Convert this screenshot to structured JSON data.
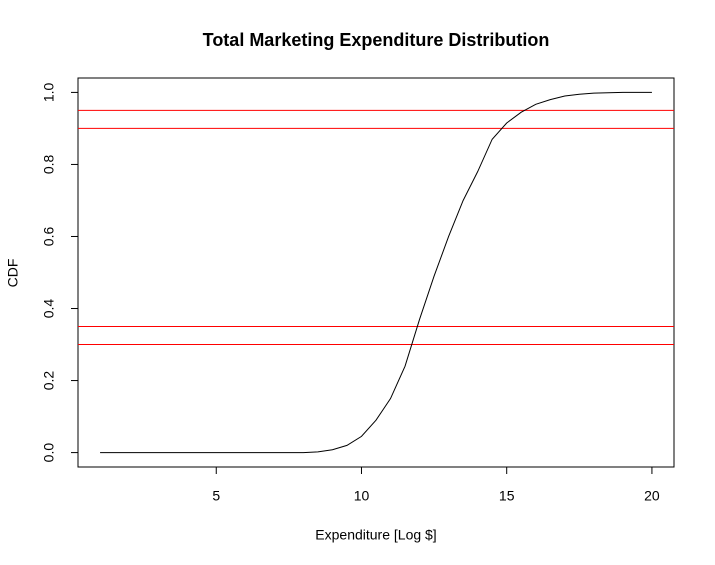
{
  "chart_data": {
    "type": "line",
    "title": "Total Marketing Expenditure Distribution",
    "x_label": "Expenditure [Log $]",
    "y_label": "CDF",
    "x": [
      1,
      2,
      3,
      4,
      5,
      6,
      7,
      8,
      8.5,
      9,
      9.5,
      10,
      10.5,
      11,
      11.5,
      12,
      12.5,
      13,
      13.5,
      14,
      14.5,
      15,
      15.5,
      16,
      16.5,
      17,
      17.5,
      18,
      19,
      20
    ],
    "series": [
      {
        "color": "#000000",
        "values": [
          0,
          0,
          0,
          0,
          0,
          0,
          0,
          0,
          0.002,
          0.008,
          0.02,
          0.045,
          0.09,
          0.15,
          0.24,
          0.37,
          0.49,
          0.6,
          0.7,
          0.78,
          0.87,
          0.915,
          0.945,
          0.967,
          0.98,
          0.99,
          0.995,
          0.998,
          1,
          1
        ]
      }
    ],
    "hlines": [
      0.3,
      0.35,
      0.9,
      0.95
    ],
    "hline_color": "#ff0000",
    "xlim": [
      0.24,
      20.76
    ],
    "ylim": [
      -0.04,
      1.04
    ],
    "xticks": [
      5,
      10,
      15,
      20
    ],
    "yticks": [
      {
        "value": 0,
        "label": "0.0"
      },
      {
        "value": 0.2,
        "label": "0.2"
      },
      {
        "value": 0.4,
        "label": "0.4"
      },
      {
        "value": 0.6,
        "label": "0.6"
      },
      {
        "value": 0.8,
        "label": "0.8"
      },
      {
        "value": 1,
        "label": "1.0"
      }
    ]
  }
}
